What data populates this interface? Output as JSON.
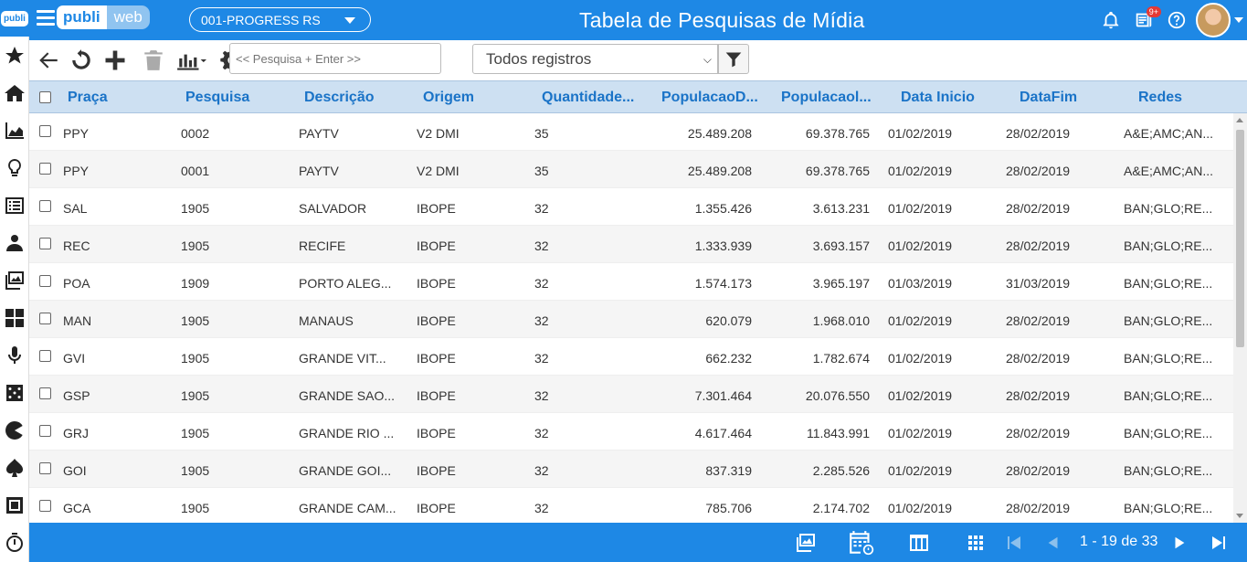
{
  "app": {
    "brand_a": "publi",
    "brand_b": "web",
    "rail_logo": "publi",
    "company_selector": "001-PROGRESS RS",
    "title": "Tabela de Pesquisas de Mídia",
    "notification_badge": "9+"
  },
  "rail_icons": [
    "star-icon",
    "home-icon",
    "area-chart-icon",
    "lightbulb-icon",
    "list-icon",
    "users-icon",
    "images-icon",
    "cmyk-icon",
    "microphone-icon",
    "dice-icon",
    "pacman-icon",
    "spade-icon",
    "stop-icon",
    "stopwatch-icon"
  ],
  "toolbar": {
    "search_placeholder": "<< Pesquisa + Enter >>",
    "filter_value": "Todos registros"
  },
  "table": {
    "columns": [
      "Praça",
      "Pesquisa",
      "Descrição",
      "Origem",
      "Quantidade...",
      "PopulacaoD...",
      "Populacaol...",
      "Data Inicio",
      "DataFim",
      "Redes"
    ],
    "rows": [
      [
        "PPY",
        "0002",
        "PAYTV",
        "V2 DMI",
        "35",
        "25.489.208",
        "69.378.765",
        "01/02/2019",
        "28/02/2019",
        "A&E;AMC;AN..."
      ],
      [
        "PPY",
        "0001",
        "PAYTV",
        "V2 DMI",
        "35",
        "25.489.208",
        "69.378.765",
        "01/02/2019",
        "28/02/2019",
        "A&E;AMC;AN..."
      ],
      [
        "SAL",
        "1905",
        "SALVADOR",
        "IBOPE",
        "32",
        "1.355.426",
        "3.613.231",
        "01/02/2019",
        "28/02/2019",
        "BAN;GLO;RE..."
      ],
      [
        "REC",
        "1905",
        "RECIFE",
        "IBOPE",
        "32",
        "1.333.939",
        "3.693.157",
        "01/02/2019",
        "28/02/2019",
        "BAN;GLO;RE..."
      ],
      [
        "POA",
        "1909",
        "PORTO ALEG...",
        "IBOPE",
        "32",
        "1.574.173",
        "3.965.197",
        "01/03/2019",
        "31/03/2019",
        "BAN;GLO;RE..."
      ],
      [
        "MAN",
        "1905",
        "MANAUS",
        "IBOPE",
        "32",
        "620.079",
        "1.968.010",
        "01/02/2019",
        "28/02/2019",
        "BAN;GLO;RE..."
      ],
      [
        "GVI",
        "1905",
        "GRANDE VIT...",
        "IBOPE",
        "32",
        "662.232",
        "1.782.674",
        "01/02/2019",
        "28/02/2019",
        "BAN;GLO;RE..."
      ],
      [
        "GSP",
        "1905",
        "GRANDE SAO...",
        "IBOPE",
        "32",
        "7.301.464",
        "20.076.550",
        "01/02/2019",
        "28/02/2019",
        "BAN;GLO;RE..."
      ],
      [
        "GRJ",
        "1905",
        "GRANDE RIO ...",
        "IBOPE",
        "32",
        "4.617.464",
        "11.843.991",
        "01/02/2019",
        "28/02/2019",
        "BAN;GLO;RE..."
      ],
      [
        "GOI",
        "1905",
        "GRANDE GOI...",
        "IBOPE",
        "32",
        "837.319",
        "2.285.526",
        "01/02/2019",
        "28/02/2019",
        "BAN;GLO;RE..."
      ],
      [
        "GCA",
        "1905",
        "GRANDE CAM...",
        "IBOPE",
        "32",
        "785.706",
        "2.174.702",
        "01/02/2019",
        "28/02/2019",
        "BAN;GLO;RE..."
      ]
    ]
  },
  "footer": {
    "pager_text": "1 - 19 de 33"
  }
}
